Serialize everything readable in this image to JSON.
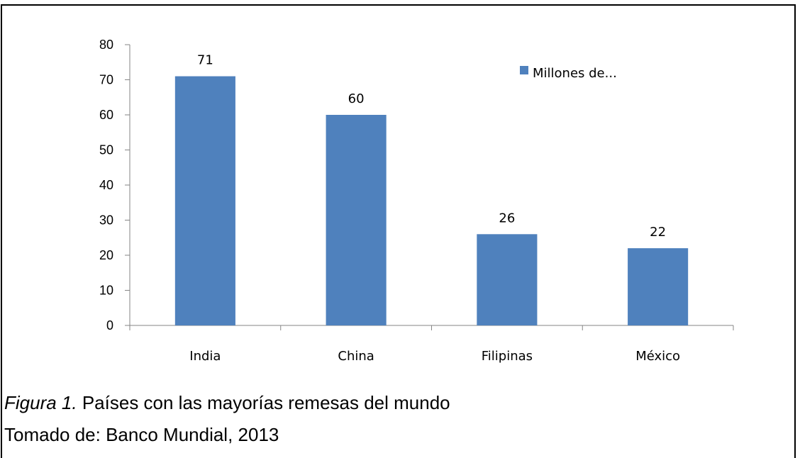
{
  "chart_data": {
    "type": "bar",
    "categories": [
      "India",
      "China",
      "Filipinas",
      "México"
    ],
    "series": [
      {
        "name": "Millones de...",
        "values": [
          71,
          60,
          26,
          22
        ],
        "color": "#4f81bd"
      }
    ],
    "ylim": [
      0,
      80
    ],
    "yticks": [
      0,
      10,
      20,
      30,
      40,
      50,
      60,
      70,
      80
    ],
    "data_labels": [
      "71",
      "60",
      "26",
      "22"
    ],
    "legend": {
      "text": "Millones de...",
      "position": "top-right"
    },
    "grid": false
  },
  "caption": {
    "figure_number": "Figura 1.",
    "text": " Países con las mayorías remesas del mundo",
    "source": "Tomado de: Banco Mundial, 2013"
  }
}
